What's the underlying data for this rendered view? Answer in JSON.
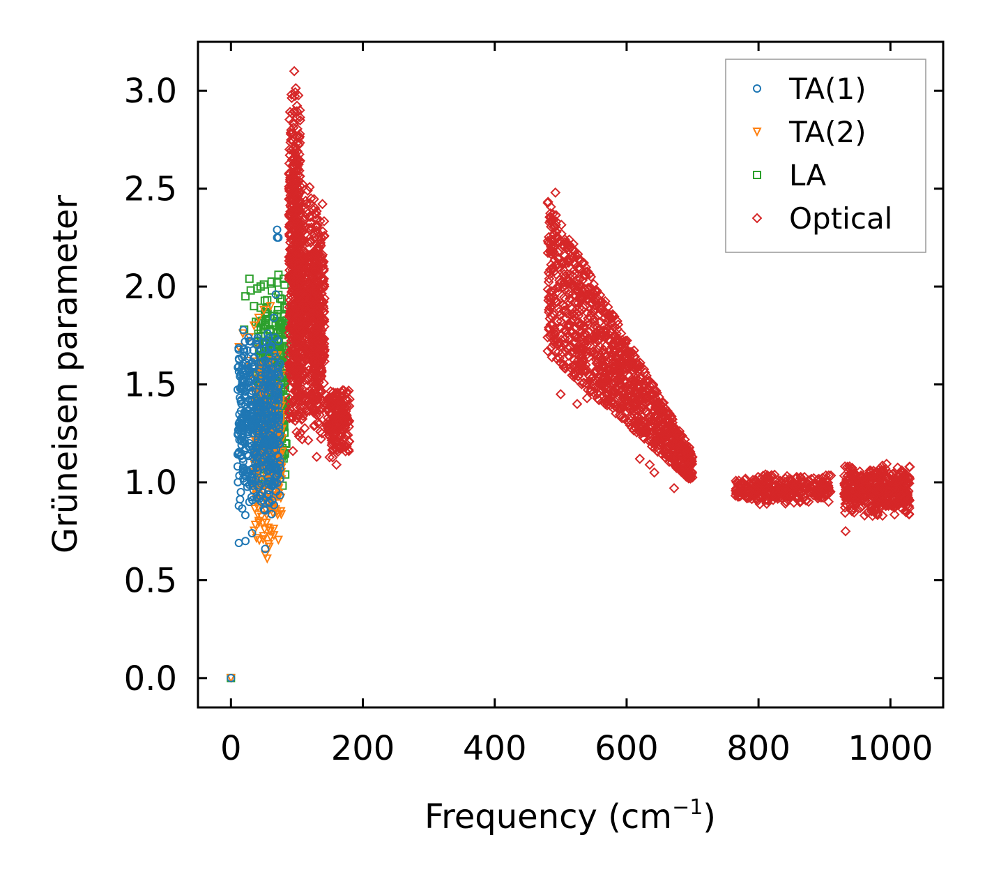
{
  "chart_data": {
    "type": "scatter",
    "title": "",
    "xlabel": "Frequency (cm",
    "xlabel_superscript": "−1",
    "xlabel_suffix": ")",
    "ylabel": "Grüneisen parameter",
    "xlim": [
      -50,
      1080
    ],
    "ylim": [
      -0.15,
      3.25
    ],
    "x_ticks": [
      0,
      200,
      400,
      600,
      800,
      1000
    ],
    "x_tick_labels": [
      "0",
      "200",
      "400",
      "600",
      "800",
      "1000"
    ],
    "y_ticks": [
      0.0,
      0.5,
      1.0,
      1.5,
      2.0,
      2.5,
      3.0
    ],
    "y_tick_labels": [
      "0.0",
      "0.5",
      "1.0",
      "1.5",
      "2.0",
      "2.5",
      "3.0"
    ],
    "grid": false,
    "legend_position": "top-right",
    "series": [
      {
        "name": "TA(1)",
        "marker": "circle",
        "color": "#1f77b4",
        "clusters": [
          {
            "x": [
              10,
              75
            ],
            "y": [
              0.8,
              1.8
            ],
            "n": 500
          }
        ],
        "points": [
          {
            "x": 0,
            "y": 0.0
          },
          {
            "x": 12,
            "y": 0.69
          },
          {
            "x": 22,
            "y": 0.7
          },
          {
            "x": 32,
            "y": 0.74
          },
          {
            "x": 52,
            "y": 0.66
          },
          {
            "x": 70,
            "y": 2.29
          },
          {
            "x": 70,
            "y": 2.25
          },
          {
            "x": 72,
            "y": 2.25
          },
          {
            "x": 12,
            "y": 0.88
          },
          {
            "x": 15,
            "y": 0.95
          },
          {
            "x": 18,
            "y": 1.05
          },
          {
            "x": 12,
            "y": 1.3
          },
          {
            "x": 14,
            "y": 1.48
          },
          {
            "x": 18,
            "y": 1.52
          },
          {
            "x": 20,
            "y": 1.55
          },
          {
            "x": 25,
            "y": 1.35
          },
          {
            "x": 28,
            "y": 0.9
          },
          {
            "x": 30,
            "y": 1.72
          },
          {
            "x": 40,
            "y": 1.7
          },
          {
            "x": 65,
            "y": 1.84
          },
          {
            "x": 68,
            "y": 1.96
          }
        ]
      },
      {
        "name": "TA(2)",
        "marker": "triangle-down",
        "color": "#ff7f0e",
        "clusters": [
          {
            "x": [
              35,
              78
            ],
            "y": [
              0.65,
              1.7
            ],
            "n": 300
          }
        ],
        "points": [
          {
            "x": 0,
            "y": 0.0
          },
          {
            "x": 52,
            "y": 0.63
          },
          {
            "x": 55,
            "y": 0.61
          },
          {
            "x": 58,
            "y": 0.67
          },
          {
            "x": 60,
            "y": 0.72
          },
          {
            "x": 12,
            "y": 1.69
          },
          {
            "x": 18,
            "y": 1.76
          },
          {
            "x": 28,
            "y": 1.74
          },
          {
            "x": 35,
            "y": 1.8
          },
          {
            "x": 42,
            "y": 1.84
          },
          {
            "x": 50,
            "y": 1.88
          },
          {
            "x": 25,
            "y": 1.62
          },
          {
            "x": 30,
            "y": 1.55
          },
          {
            "x": 38,
            "y": 1.7
          },
          {
            "x": 60,
            "y": 1.9
          }
        ]
      },
      {
        "name": "LA",
        "marker": "square",
        "color": "#2ca02c",
        "clusters": [
          {
            "x": [
              40,
              85
            ],
            "y": [
              0.95,
              2.05
            ],
            "n": 350
          }
        ],
        "points": [
          {
            "x": 0,
            "y": 0.0
          },
          {
            "x": 20,
            "y": 1.78
          },
          {
            "x": 22,
            "y": 1.95
          },
          {
            "x": 28,
            "y": 2.04
          },
          {
            "x": 30,
            "y": 1.98
          },
          {
            "x": 35,
            "y": 1.9
          },
          {
            "x": 40,
            "y": 1.99
          },
          {
            "x": 45,
            "y": 2.0
          },
          {
            "x": 50,
            "y": 2.01
          },
          {
            "x": 55,
            "y": 1.93
          },
          {
            "x": 62,
            "y": 1.98
          },
          {
            "x": 70,
            "y": 2.02
          },
          {
            "x": 72,
            "y": 2.06
          },
          {
            "x": 80,
            "y": 2.04
          },
          {
            "x": 38,
            "y": 1.82
          }
        ]
      },
      {
        "name": "Optical",
        "marker": "diamond",
        "color": "#d62728",
        "clusters": [
          {
            "x": [
              88,
              105
            ],
            "y": [
              1.15,
              3.1
            ],
            "n": 500
          },
          {
            "x": [
              100,
              130
            ],
            "y": [
              1.2,
              2.55
            ],
            "n": 450
          },
          {
            "x": [
              125,
              142
            ],
            "y": [
              1.2,
              2.45
            ],
            "n": 300
          },
          {
            "x": [
              145,
              180
            ],
            "y": [
              1.1,
              1.5
            ],
            "n": 200
          },
          {
            "x": [
              480,
              700
            ],
            "y": [
              1.05,
              2.45
            ],
            "n": 1200,
            "band": "decay"
          },
          {
            "x": [
              765,
              910
            ],
            "y": [
              0.88,
              1.05
            ],
            "n": 350
          },
          {
            "x": [
              930,
              1030
            ],
            "y": [
              0.82,
              1.1
            ],
            "n": 450
          }
        ],
        "points": [
          {
            "x": 94,
            "y": 1.16
          },
          {
            "x": 108,
            "y": 1.22
          },
          {
            "x": 130,
            "y": 1.13
          },
          {
            "x": 138,
            "y": 1.25
          },
          {
            "x": 145,
            "y": 1.3
          },
          {
            "x": 160,
            "y": 1.09
          },
          {
            "x": 500,
            "y": 1.45
          },
          {
            "x": 525,
            "y": 1.4
          },
          {
            "x": 540,
            "y": 1.43
          },
          {
            "x": 620,
            "y": 1.12
          },
          {
            "x": 635,
            "y": 1.09
          },
          {
            "x": 642,
            "y": 1.05
          },
          {
            "x": 672,
            "y": 0.97
          },
          {
            "x": 690,
            "y": 1.15
          },
          {
            "x": 932,
            "y": 0.75
          },
          {
            "x": 492,
            "y": 2.48
          },
          {
            "x": 96,
            "y": 3.1
          }
        ]
      }
    ]
  }
}
